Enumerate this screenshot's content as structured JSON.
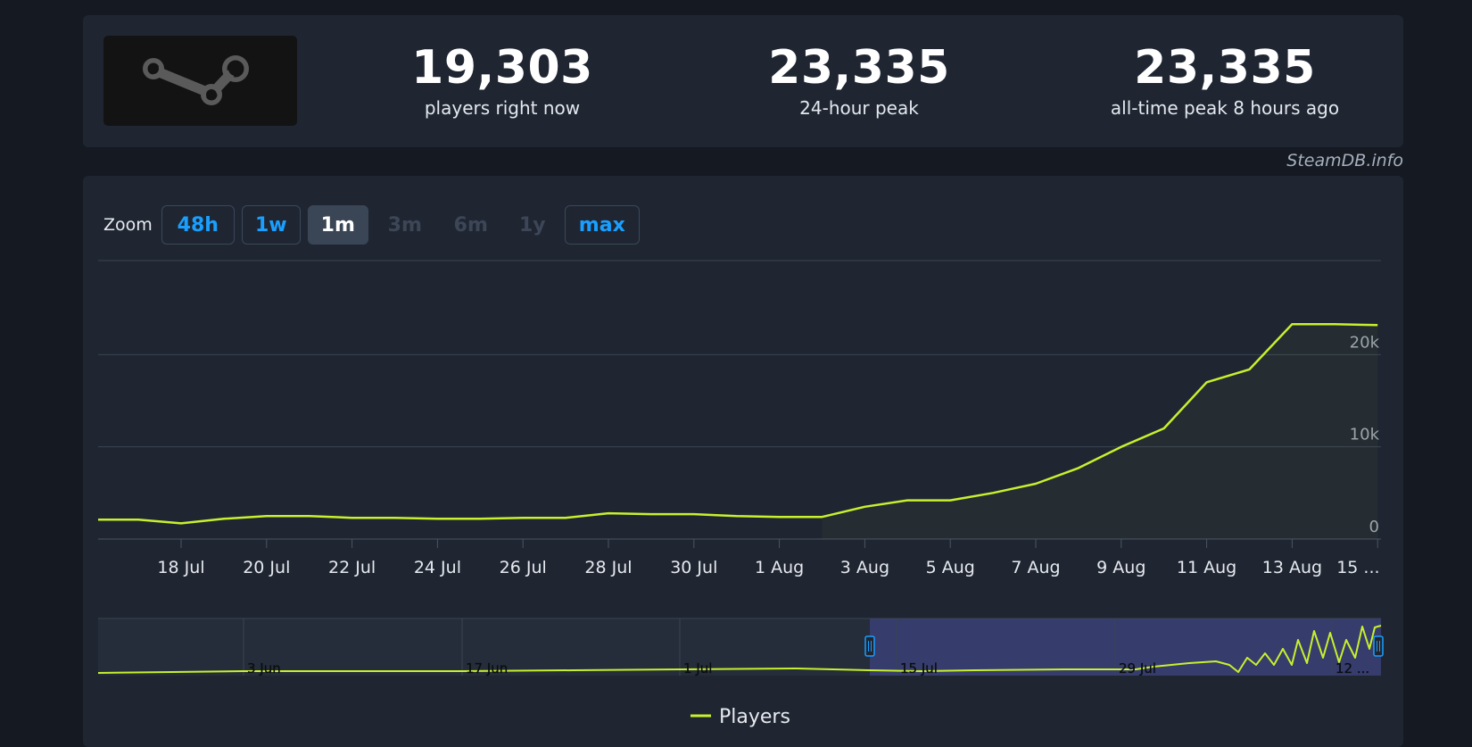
{
  "stats": {
    "current": {
      "value": "19,303",
      "label": "players right now"
    },
    "peak24": {
      "value": "23,335",
      "label": "24-hour peak"
    },
    "alltime": {
      "value": "23,335",
      "label": "all-time peak 8 hours ago"
    }
  },
  "credit": "SteamDB.info",
  "zoom": {
    "label": "Zoom",
    "buttons": [
      {
        "label": "48h",
        "state": "active"
      },
      {
        "label": "1w",
        "state": "active"
      },
      {
        "label": "1m",
        "state": "selected"
      },
      {
        "label": "3m",
        "state": "disabled"
      },
      {
        "label": "6m",
        "state": "disabled"
      },
      {
        "label": "1y",
        "state": "disabled"
      },
      {
        "label": "max",
        "state": "active"
      }
    ]
  },
  "colors": {
    "line": "#c8f02e",
    "navigator_mask": "#3a4075",
    "accent": "#1a9fff"
  },
  "icons": {
    "logo": "steam-logo-icon"
  },
  "chart_data": {
    "type": "line",
    "title": "",
    "xlabel": "",
    "ylabel": "",
    "y_axis_position": "right",
    "ylim": [
      0,
      30000
    ],
    "y_ticks": [
      0,
      10000,
      20000
    ],
    "y_tick_labels": [
      "0",
      "10k",
      "20k"
    ],
    "grid": true,
    "legend": {
      "position": "bottom-center",
      "entries": [
        "Players"
      ]
    },
    "x_ticks": [
      "18 Jul",
      "20 Jul",
      "22 Jul",
      "24 Jul",
      "26 Jul",
      "28 Jul",
      "30 Jul",
      "1 Aug",
      "3 Aug",
      "5 Aug",
      "7 Aug",
      "9 Aug",
      "11 Aug",
      "13 Aug",
      "15 ..."
    ],
    "series": [
      {
        "name": "Players",
        "x": [
          "16 Jul",
          "17 Jul",
          "18 Jul",
          "19 Jul",
          "20 Jul",
          "21 Jul",
          "22 Jul",
          "23 Jul",
          "24 Jul",
          "25 Jul",
          "26 Jul",
          "27 Jul",
          "28 Jul",
          "29 Jul",
          "30 Jul",
          "31 Jul",
          "1 Aug",
          "2 Aug",
          "3 Aug",
          "4 Aug",
          "5 Aug",
          "6 Aug",
          "7 Aug",
          "8 Aug",
          "9 Aug",
          "10 Aug",
          "11 Aug",
          "12 Aug",
          "13 Aug",
          "14 Aug",
          "15 Aug"
        ],
        "values": [
          2100,
          2100,
          1700,
          2200,
          2500,
          2500,
          2300,
          2300,
          2200,
          2200,
          2300,
          2300,
          2800,
          2700,
          2700,
          2500,
          2400,
          2400,
          3500,
          4200,
          4200,
          5000,
          6000,
          7700,
          10000,
          12000,
          17000,
          18400,
          23300,
          23300,
          23200
        ]
      }
    ],
    "navigator": {
      "x_labels": [
        "3 Jun",
        "17 Jun",
        "1 Jul",
        "15 Jul",
        "29 Jul",
        "12 ..."
      ],
      "selected_range": [
        "15 Jul",
        "15 Aug"
      ]
    }
  }
}
